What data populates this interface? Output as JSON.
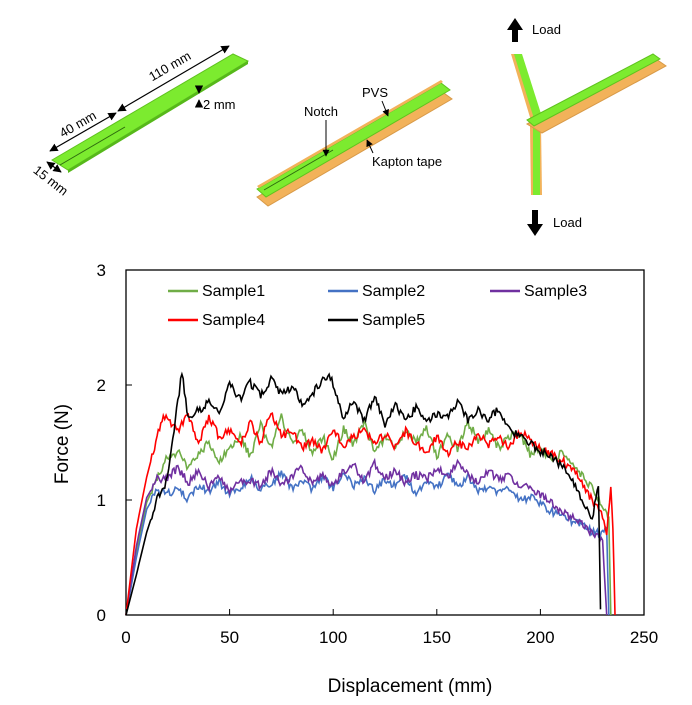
{
  "diagram": {
    "dims": {
      "length": "110 mm",
      "notch": "40 mm",
      "width": "15 mm",
      "thickness": "2 mm"
    },
    "labels": {
      "pvs": "PVS",
      "notch": "Notch",
      "kapton": "Kapton tape",
      "load_top": "Load",
      "load_bottom": "Load"
    },
    "colors": {
      "pvs": "#7CEB2F",
      "tape": "#F2B25A",
      "tape_dark": "#D89A48"
    }
  },
  "chart_data": {
    "type": "line",
    "title": "",
    "xlabel": "Displacement (mm)",
    "ylabel": "Force (N)",
    "xlim": [
      0,
      250
    ],
    "ylim": [
      0,
      3
    ],
    "xticks": [
      "0",
      "50",
      "100",
      "150",
      "200",
      "250"
    ],
    "yticks": [
      "0",
      "1",
      "2",
      "3"
    ],
    "grid": false,
    "legend_position": "top",
    "series": [
      {
        "name": "Sample1",
        "color": "#70AD47",
        "x": [
          0,
          5,
          10,
          15,
          18,
          20,
          25,
          30,
          35,
          40,
          45,
          50,
          55,
          60,
          65,
          70,
          75,
          80,
          85,
          90,
          95,
          100,
          105,
          110,
          115,
          120,
          125,
          130,
          135,
          140,
          145,
          150,
          155,
          160,
          165,
          170,
          175,
          180,
          185,
          190,
          195,
          200,
          205,
          210,
          215,
          220,
          225,
          230,
          232,
          233,
          234
        ],
        "y": [
          0,
          0.55,
          0.98,
          1.18,
          1.3,
          1.38,
          1.42,
          1.28,
          1.4,
          1.5,
          1.33,
          1.45,
          1.55,
          1.38,
          1.65,
          1.45,
          1.72,
          1.5,
          1.6,
          1.42,
          1.55,
          1.35,
          1.62,
          1.48,
          1.68,
          1.4,
          1.55,
          1.45,
          1.6,
          1.5,
          1.62,
          1.38,
          1.55,
          1.45,
          1.68,
          1.52,
          1.6,
          1.45,
          1.55,
          1.58,
          1.4,
          1.45,
          1.35,
          1.4,
          1.3,
          1.22,
          1.1,
          0.95,
          0.9,
          0.85,
          0
        ]
      },
      {
        "name": "Sample2",
        "color": "#4472C4",
        "x": [
          0,
          5,
          10,
          15,
          20,
          25,
          30,
          35,
          40,
          45,
          50,
          55,
          60,
          65,
          70,
          75,
          80,
          85,
          90,
          95,
          100,
          105,
          110,
          115,
          120,
          125,
          130,
          135,
          140,
          145,
          150,
          155,
          160,
          165,
          170,
          175,
          180,
          185,
          190,
          195,
          200,
          205,
          210,
          215,
          220,
          225,
          230,
          232,
          233
        ],
        "y": [
          0,
          0.5,
          0.92,
          1.08,
          1.05,
          1.1,
          1.0,
          1.12,
          1.08,
          1.15,
          1.05,
          1.1,
          1.2,
          1.08,
          1.15,
          1.22,
          1.1,
          1.18,
          1.08,
          1.2,
          1.1,
          1.25,
          1.12,
          1.2,
          1.08,
          1.18,
          1.12,
          1.2,
          1.05,
          1.15,
          1.1,
          1.22,
          1.12,
          1.2,
          1.08,
          1.12,
          1.05,
          1.1,
          1.0,
          1.02,
          0.98,
          0.9,
          0.88,
          0.82,
          0.78,
          0.72,
          0.7,
          0.75,
          0
        ]
      },
      {
        "name": "Sample3",
        "color": "#7030A0",
        "x": [
          0,
          5,
          10,
          15,
          20,
          25,
          30,
          35,
          40,
          45,
          50,
          55,
          60,
          65,
          70,
          75,
          80,
          85,
          90,
          95,
          100,
          105,
          110,
          115,
          120,
          125,
          130,
          135,
          140,
          145,
          150,
          155,
          160,
          165,
          170,
          175,
          180,
          185,
          190,
          195,
          200,
          205,
          210,
          215,
          220,
          225,
          230,
          232
        ],
        "y": [
          0,
          0.6,
          1.02,
          1.18,
          1.2,
          1.28,
          1.15,
          1.25,
          1.12,
          1.2,
          1.08,
          1.15,
          1.18,
          1.12,
          1.25,
          1.15,
          1.2,
          1.28,
          1.15,
          1.22,
          1.12,
          1.25,
          1.3,
          1.15,
          1.32,
          1.2,
          1.25,
          1.15,
          1.22,
          1.18,
          1.28,
          1.2,
          1.32,
          1.22,
          1.15,
          1.25,
          1.18,
          1.22,
          1.12,
          1.1,
          1.05,
          0.98,
          0.9,
          0.85,
          0.8,
          0.7,
          0.65,
          0
        ]
      },
      {
        "name": "Sample4",
        "color": "#FF0000",
        "x": [
          0,
          5,
          10,
          15,
          18,
          20,
          25,
          30,
          35,
          40,
          45,
          50,
          55,
          60,
          65,
          70,
          75,
          80,
          85,
          90,
          95,
          100,
          105,
          110,
          115,
          120,
          125,
          130,
          135,
          140,
          145,
          150,
          155,
          160,
          165,
          170,
          175,
          180,
          185,
          190,
          195,
          200,
          205,
          210,
          215,
          220,
          225,
          230,
          232,
          234,
          235,
          236
        ],
        "y": [
          0,
          0.75,
          1.2,
          1.55,
          1.72,
          1.7,
          1.6,
          1.75,
          1.5,
          1.72,
          1.55,
          1.6,
          1.48,
          1.68,
          1.5,
          1.78,
          1.55,
          1.6,
          1.45,
          1.52,
          1.42,
          1.6,
          1.48,
          1.55,
          1.62,
          1.48,
          1.58,
          1.45,
          1.6,
          1.5,
          1.42,
          1.55,
          1.4,
          1.5,
          1.45,
          1.58,
          1.48,
          1.55,
          1.45,
          1.6,
          1.52,
          1.45,
          1.4,
          1.35,
          1.28,
          1.15,
          1.0,
          0.85,
          0.7,
          1.12,
          0.75,
          0
        ]
      },
      {
        "name": "Sample5",
        "color": "#000000",
        "x": [
          0,
          5,
          10,
          15,
          20,
          22,
          25,
          27,
          30,
          35,
          40,
          45,
          50,
          55,
          60,
          65,
          70,
          75,
          80,
          85,
          90,
          95,
          98,
          100,
          105,
          110,
          115,
          120,
          125,
          130,
          135,
          140,
          145,
          150,
          155,
          160,
          165,
          170,
          175,
          180,
          185,
          190,
          195,
          200,
          205,
          210,
          215,
          220,
          225,
          228,
          229
        ],
        "y": [
          0,
          0.35,
          0.72,
          1.0,
          1.18,
          1.45,
          1.85,
          2.12,
          1.7,
          1.78,
          1.85,
          1.75,
          2.0,
          1.88,
          2.02,
          1.9,
          2.05,
          1.92,
          1.98,
          1.85,
          1.92,
          2.05,
          2.1,
          2.0,
          1.72,
          1.85,
          1.7,
          1.9,
          1.65,
          1.82,
          1.7,
          1.8,
          1.68,
          1.75,
          1.72,
          1.85,
          1.7,
          1.78,
          1.7,
          1.8,
          1.62,
          1.55,
          1.5,
          1.42,
          1.38,
          1.3,
          1.2,
          0.98,
          0.85,
          1.12,
          0.05
        ]
      }
    ]
  }
}
